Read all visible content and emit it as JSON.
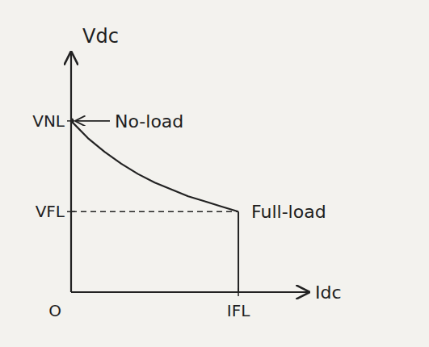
{
  "chart_data": {
    "type": "line",
    "x_label": "Idc",
    "y_label": "Vdc",
    "x": [
      0,
      0.1,
      0.2,
      0.3,
      0.4,
      0.5,
      0.6,
      0.7,
      0.8,
      0.9,
      1.0
    ],
    "values": [
      1.0,
      0.9,
      0.82,
      0.75,
      0.69,
      0.64,
      0.6,
      0.56,
      0.53,
      0.5,
      0.47
    ],
    "color": "#222222",
    "xlim": [
      0,
      1.42
    ],
    "ylim": [
      0,
      1.4
    ],
    "xticks": [
      {
        "value": 0,
        "label": "O"
      },
      {
        "value": 1.0,
        "label": "IFL"
      }
    ],
    "yticks": [
      {
        "value": 1.0,
        "label": "VNL"
      },
      {
        "value": 0.47,
        "label": "VFL"
      }
    ],
    "grid": false,
    "annotations": [
      "No-load",
      "Full-load"
    ]
  }
}
